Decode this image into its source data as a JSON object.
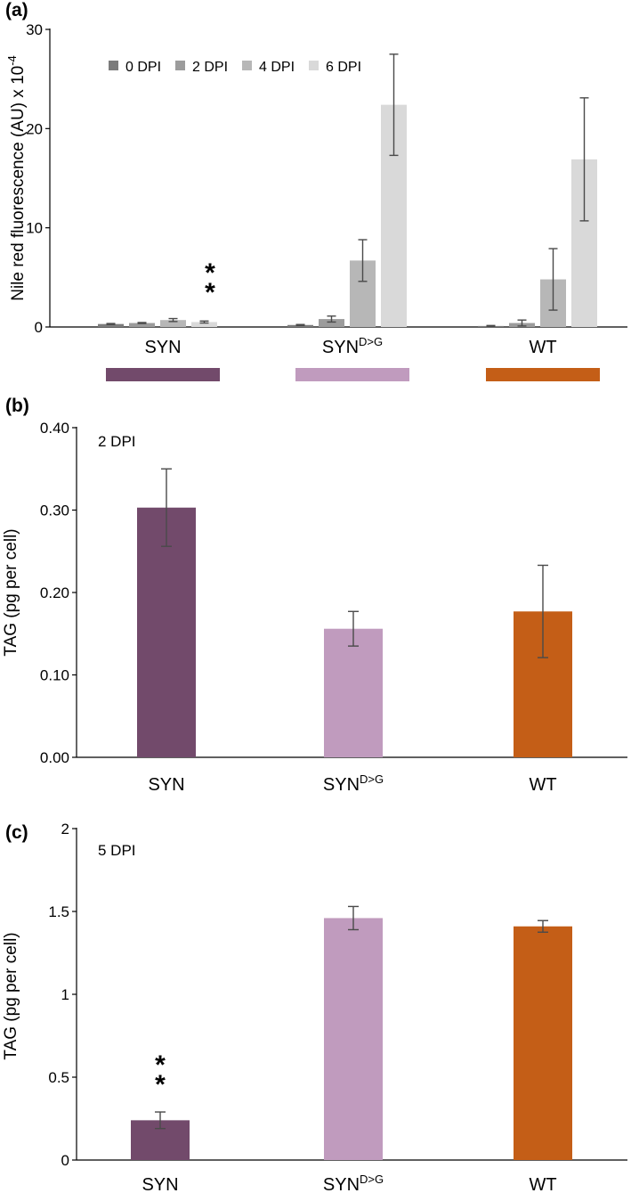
{
  "chart_data": [
    {
      "panel": "(a)",
      "type": "bar",
      "ylabel": "Nile red fluorescence (AU) x 10",
      "ylabel_exponent": "-4",
      "ylim": [
        0,
        30
      ],
      "yticks": [
        "0",
        "10",
        "20",
        "30"
      ],
      "categories": [
        {
          "base": "SYN",
          "sup": ""
        },
        {
          "base": "SYN",
          "sup": "D>G"
        },
        {
          "base": "WT",
          "sup": ""
        }
      ],
      "category_colors": [
        "#724a6b",
        "#c09bbe",
        "#c45e17"
      ],
      "series": [
        {
          "name": "0 DPI",
          "color": "#7c7c7c",
          "values": [
            0.3,
            0.2,
            0.1
          ],
          "errors": [
            0.05,
            0.05,
            0.05
          ]
        },
        {
          "name": "2 DPI",
          "color": "#9c9c9c",
          "values": [
            0.4,
            0.8,
            0.4
          ],
          "errors": [
            0.05,
            0.3,
            0.3
          ]
        },
        {
          "name": "4 DPI",
          "color": "#b7b7b7",
          "values": [
            0.7,
            6.7,
            4.8
          ],
          "errors": [
            0.15,
            2.1,
            3.1
          ]
        },
        {
          "name": "6 DPI",
          "color": "#d9d9d9",
          "values": [
            0.5,
            22.4,
            16.9
          ],
          "errors": [
            0.1,
            5.1,
            6.2
          ]
        }
      ],
      "annotations": [
        {
          "text": "**",
          "category": "SYN"
        }
      ]
    },
    {
      "panel": "(b)",
      "type": "bar",
      "note": "2 DPI",
      "ylabel": "TAG (pg per cell)",
      "ylim": [
        0,
        0.4
      ],
      "yticks": [
        "0.00",
        "0.10",
        "0.20",
        "0.30",
        "0.40"
      ],
      "categories": [
        {
          "base": "SYN",
          "sup": ""
        },
        {
          "base": "SYN",
          "sup": "D>G"
        },
        {
          "base": "WT",
          "sup": ""
        }
      ],
      "colors": [
        "#724a6b",
        "#c09bbe",
        "#c45e17"
      ],
      "values": [
        0.303,
        0.156,
        0.177
      ],
      "errors": [
        0.047,
        0.021,
        0.056
      ]
    },
    {
      "panel": "(c)",
      "type": "bar",
      "note": "5 DPI",
      "ylabel": "TAG (pg per cell)",
      "ylim": [
        0,
        2
      ],
      "yticks": [
        "0",
        "0.5",
        "1",
        "1.5",
        "2"
      ],
      "categories": [
        {
          "base": "SYN",
          "sup": ""
        },
        {
          "base": "SYN",
          "sup": "D>G"
        },
        {
          "base": "WT",
          "sup": ""
        }
      ],
      "colors": [
        "#724a6b",
        "#c09bbe",
        "#c45e17"
      ],
      "values": [
        0.24,
        1.46,
        1.41
      ],
      "errors": [
        0.05,
        0.07,
        0.035
      ],
      "annotations": [
        {
          "text": "**",
          "category": "SYN"
        }
      ]
    }
  ]
}
